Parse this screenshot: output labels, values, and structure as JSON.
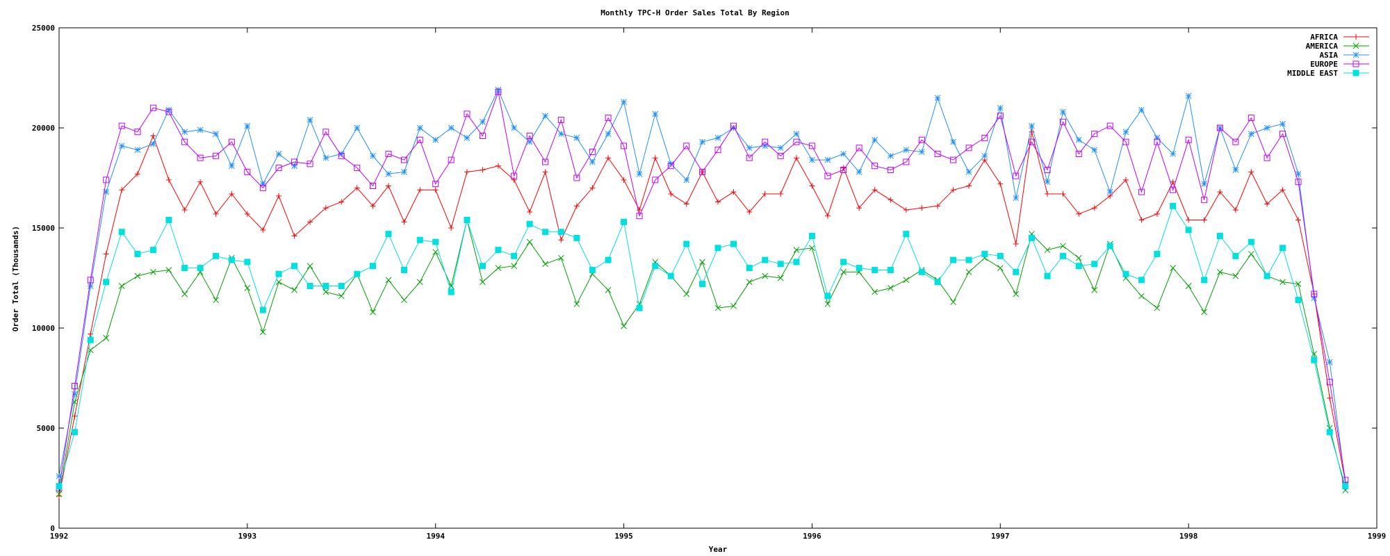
{
  "chart_data": {
    "type": "line",
    "title": "Monthly TPC-H Order Sales Total By Region",
    "xlabel": "Year",
    "ylabel": "Order Total (Thousands)",
    "xlim": [
      1992,
      1999
    ],
    "ylim": [
      0,
      25000
    ],
    "x_ticks": [
      "1992",
      "1993",
      "1994",
      "1995",
      "1996",
      "1997",
      "1998",
      "1999"
    ],
    "y_ticks": [
      "0",
      "5000",
      "10000",
      "15000",
      "20000",
      "25000"
    ],
    "grid": false,
    "legend_position": "top-right",
    "x": [
      1992.0,
      1992.083,
      1992.167,
      1992.25,
      1992.333,
      1992.417,
      1992.5,
      1992.583,
      1992.667,
      1992.75,
      1992.833,
      1992.917,
      1993.0,
      1993.083,
      1993.167,
      1993.25,
      1993.333,
      1993.417,
      1993.5,
      1993.583,
      1993.667,
      1993.75,
      1993.833,
      1993.917,
      1994.0,
      1994.083,
      1994.167,
      1994.25,
      1994.333,
      1994.417,
      1994.5,
      1994.583,
      1994.667,
      1994.75,
      1994.833,
      1994.917,
      1995.0,
      1995.083,
      1995.167,
      1995.25,
      1995.333,
      1995.417,
      1995.5,
      1995.583,
      1995.667,
      1995.75,
      1995.833,
      1995.917,
      1996.0,
      1996.083,
      1996.167,
      1996.25,
      1996.333,
      1996.417,
      1996.5,
      1996.583,
      1996.667,
      1996.75,
      1996.833,
      1996.917,
      1997.0,
      1997.083,
      1997.167,
      1997.25,
      1997.333,
      1997.417,
      1997.5,
      1997.583,
      1997.667,
      1997.75,
      1997.833,
      1997.917,
      1998.0,
      1998.083,
      1998.167,
      1998.25,
      1998.333,
      1998.417,
      1998.5,
      1998.583,
      1998.667,
      1998.75,
      1998.833
    ],
    "series": [
      {
        "name": "AFRICA",
        "color": "#ff0000",
        "marker": "plus",
        "values": [
          1600,
          5600,
          9700,
          13700,
          16900,
          17700,
          19600,
          17400,
          15900,
          17300,
          15700,
          16700,
          15700,
          14900,
          16600,
          14600,
          15300,
          16000,
          16300,
          17000,
          16100,
          17100,
          15300,
          16900,
          16900,
          15000,
          17800,
          17900,
          18100,
          17400,
          15800,
          17800,
          14400,
          16100,
          17000,
          18500,
          17400,
          15900,
          18500,
          16700,
          16200,
          17800,
          16300,
          16800,
          15800,
          16700,
          16700,
          18500,
          17100,
          15600,
          18000,
          16000,
          16900,
          16400,
          15900,
          16000,
          16100,
          16900,
          17100,
          18400,
          17200,
          14200,
          19800,
          16700,
          16700,
          15700,
          16000,
          16600,
          17400,
          15400,
          15700,
          17300,
          15400,
          15400,
          16800,
          15900,
          17800,
          16200,
          16900,
          15400,
          11700,
          6500,
          2300
        ]
      },
      {
        "name": "AMERICA",
        "color": "#00a000",
        "marker": "x",
        "values": [
          1700,
          6300,
          8900,
          9500,
          12100,
          12600,
          12800,
          12900,
          11700,
          12800,
          11400,
          13500,
          12000,
          9800,
          12300,
          11900,
          13100,
          11800,
          11600,
          12700,
          10800,
          12400,
          11400,
          12300,
          13800,
          12100,
          15400,
          12300,
          13000,
          13100,
          14300,
          13200,
          13500,
          11200,
          12700,
          11900,
          10100,
          11200,
          13300,
          12600,
          11700,
          13300,
          11000,
          11100,
          12300,
          12600,
          12500,
          13900,
          14000,
          11200,
          12800,
          12800,
          11800,
          12000,
          12400,
          12900,
          12400,
          11300,
          12800,
          13500,
          13000,
          11700,
          14700,
          13900,
          14100,
          13500,
          11900,
          14200,
          12500,
          11600,
          11000,
          13000,
          12100,
          10800,
          12800,
          12600,
          13700,
          12600,
          12300,
          12200,
          8700,
          5000,
          1900
        ]
      },
      {
        "name": "ASIA",
        "color": "#1e90ff",
        "marker": "star",
        "values": [
          2600,
          6700,
          12100,
          16800,
          19100,
          18900,
          19200,
          20900,
          19800,
          19900,
          19700,
          18100,
          20100,
          17200,
          18700,
          18100,
          20400,
          18500,
          18700,
          20000,
          18600,
          17700,
          17800,
          20000,
          19400,
          20000,
          19500,
          20300,
          21900,
          20000,
          19300,
          20600,
          19700,
          19500,
          18300,
          19700,
          21300,
          17700,
          20700,
          18200,
          17400,
          19300,
          19500,
          20000,
          19000,
          19100,
          19000,
          19700,
          18400,
          18400,
          18700,
          17800,
          19400,
          18600,
          18900,
          18800,
          21500,
          19300,
          17800,
          18600,
          21000,
          16500,
          20100,
          17300,
          20800,
          19400,
          18900,
          16800,
          19800,
          20900,
          19500,
          18700,
          21600,
          17200,
          20000,
          17900,
          19700,
          20000,
          20200,
          17700,
          11500,
          8300,
          2200
        ]
      },
      {
        "name": "EUROPE",
        "color": "#c000ff",
        "marker": "square-open",
        "values": [
          2000,
          7100,
          12400,
          17400,
          20100,
          19800,
          21000,
          20800,
          19300,
          18500,
          18600,
          19300,
          17800,
          17000,
          18000,
          18300,
          18200,
          19800,
          18600,
          18000,
          17100,
          18700,
          18400,
          19400,
          17200,
          18400,
          20700,
          19600,
          21800,
          17600,
          19600,
          18300,
          20400,
          17500,
          18800,
          20500,
          19100,
          15600,
          17400,
          18100,
          19100,
          17800,
          18900,
          20100,
          18500,
          19300,
          18600,
          19300,
          19100,
          17600,
          17900,
          19000,
          18100,
          17900,
          18300,
          19400,
          18700,
          18400,
          19000,
          19500,
          20600,
          17600,
          19300,
          17900,
          20300,
          18700,
          19700,
          20100,
          19300,
          16800,
          19300,
          16900,
          19400,
          16400,
          20000,
          19300,
          20500,
          18500,
          19700,
          17300,
          11700,
          7300,
          2400
        ]
      },
      {
        "name": "MIDDLE EAST",
        "color": "#00e0e0",
        "marker": "square-filled",
        "values": [
          2100,
          4800,
          9400,
          12300,
          14800,
          13700,
          13900,
          15400,
          13000,
          13000,
          13600,
          13400,
          13300,
          10900,
          12700,
          13100,
          12100,
          12100,
          12100,
          12700,
          13100,
          14700,
          12900,
          14400,
          14300,
          11800,
          15400,
          13100,
          13900,
          13600,
          15200,
          14800,
          14800,
          14500,
          12900,
          13400,
          15300,
          11000,
          13100,
          12600,
          14200,
          12200,
          14000,
          14200,
          13000,
          13400,
          13200,
          13300,
          14600,
          11600,
          13300,
          13000,
          12900,
          12900,
          14700,
          12800,
          12300,
          13400,
          13400,
          13700,
          13600,
          12800,
          14500,
          12600,
          13600,
          13100,
          13200,
          14100,
          12700,
          12400,
          13700,
          16100,
          14900,
          12400,
          14600,
          13600,
          14300,
          12600,
          14000,
          11400,
          8400,
          4800,
          2100
        ]
      }
    ]
  }
}
